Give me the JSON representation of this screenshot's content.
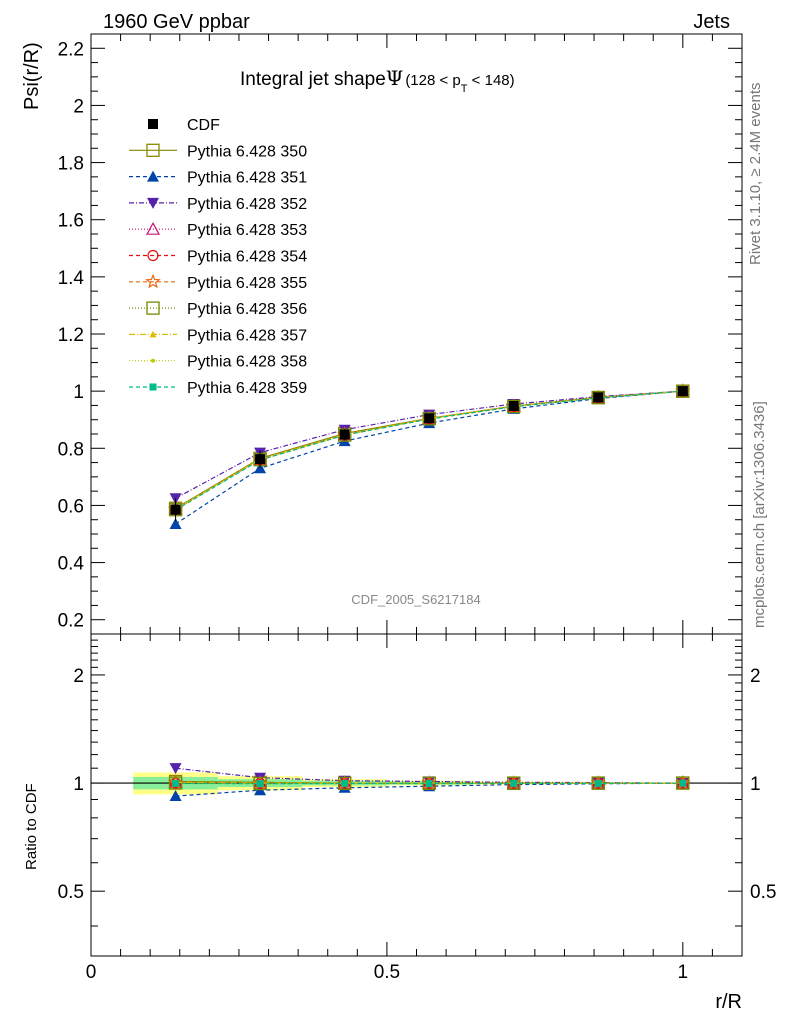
{
  "header": {
    "left": "1960 GeV ppbar",
    "right": "Jets"
  },
  "side_texts": {
    "rivet": "Rivet 3.1.10, ≥ 2.4M events",
    "mcplots": "mcplots.cern.ch [arXiv:1306.3436]"
  },
  "chart_data": [
    {
      "type": "line",
      "title": "Integral jet shape Ψ (128 < pT < 148)",
      "title_parts": {
        "main": "Integral jet shape",
        "symbol": "Ψ",
        "range_pre": "(128 < p",
        "range_sub": "T",
        "range_post": " < 148)"
      },
      "ylabel": "Psi(r/R)",
      "xlabel": "r/R",
      "xlim": [
        0,
        1.1
      ],
      "ylim": [
        0.15,
        2.25
      ],
      "yticks": [
        0.2,
        0.4,
        0.6,
        0.8,
        1,
        1.2,
        1.4,
        1.6,
        1.8,
        2,
        2.2
      ],
      "ytick_labels": [
        "0.2",
        "0.4",
        "0.6",
        "0.8",
        "1",
        "1.2",
        "1.4",
        "1.6",
        "1.8",
        "2",
        "2.2"
      ],
      "watermark": "CDF_2005_S6217184",
      "legend_position": "top-left",
      "x": [
        0.1429,
        0.2857,
        0.4286,
        0.5714,
        0.7143,
        0.8571,
        1.0
      ],
      "data_series": {
        "name": "CDF",
        "values": [
          0.585,
          0.762,
          0.848,
          0.905,
          0.948,
          0.978,
          1.0
        ],
        "errors": [
          0.04,
          0.03,
          0.02,
          0.015,
          0.01,
          0.006,
          0.0
        ],
        "color": "#000000",
        "marker": "filled-square"
      },
      "series": [
        {
          "name": "Pythia 6.428 350",
          "values": [
            0.59,
            0.765,
            0.852,
            0.905,
            0.948,
            0.978,
            1.0
          ],
          "color": "#888800",
          "dash": "",
          "marker": "open-square"
        },
        {
          "name": "Pythia 6.428 351",
          "values": [
            0.535,
            0.73,
            0.825,
            0.888,
            0.938,
            0.974,
            1.0
          ],
          "color": "#0044aa",
          "dash": "4,3",
          "marker": "filled-triangle-up"
        },
        {
          "name": "Pythia 6.428 352",
          "values": [
            0.625,
            0.785,
            0.865,
            0.918,
            0.955,
            0.981,
            1.0
          ],
          "color": "#5522aa",
          "dash": "5,2,1,2",
          "marker": "filled-triangle-down"
        },
        {
          "name": "Pythia 6.428 353",
          "values": [
            0.588,
            0.762,
            0.848,
            0.904,
            0.947,
            0.977,
            1.0
          ],
          "color": "#cc1177",
          "dash": "1,2",
          "marker": "open-triangle-up"
        },
        {
          "name": "Pythia 6.428 354",
          "values": [
            0.586,
            0.76,
            0.847,
            0.903,
            0.946,
            0.977,
            1.0
          ],
          "color": "#dd1111",
          "dash": "4,3",
          "marker": "open-circle"
        },
        {
          "name": "Pythia 6.428 355",
          "values": [
            0.587,
            0.761,
            0.848,
            0.904,
            0.947,
            0.977,
            1.0
          ],
          "color": "#ee6611",
          "dash": "4,3",
          "marker": "open-star"
        },
        {
          "name": "Pythia 6.428 356",
          "values": [
            0.585,
            0.76,
            0.846,
            0.903,
            0.946,
            0.977,
            1.0
          ],
          "color": "#778800",
          "dash": "1,2",
          "marker": "open-square"
        },
        {
          "name": "Pythia 6.428 357",
          "values": [
            0.588,
            0.762,
            0.848,
            0.904,
            0.947,
            0.977,
            1.0
          ],
          "color": "#ddbb00",
          "dash": "6,2,1,2",
          "marker": "small-filled-triangle"
        },
        {
          "name": "Pythia 6.428 358",
          "values": [
            0.587,
            0.761,
            0.847,
            0.904,
            0.947,
            0.977,
            1.0
          ],
          "color": "#bbcc00",
          "dash": "1,2",
          "marker": "small-dot"
        },
        {
          "name": "Pythia 6.428 359",
          "values": [
            0.584,
            0.759,
            0.846,
            0.902,
            0.946,
            0.976,
            1.0
          ],
          "color": "#00bb88",
          "dash": "4,3",
          "marker": "filled-square-small"
        }
      ]
    },
    {
      "type": "line",
      "ylabel": "Ratio to CDF",
      "xlabel": "r/R",
      "xlim": [
        0,
        1.1
      ],
      "ylim": [
        0.33,
        2.6
      ],
      "log_y": true,
      "yticks": [
        0.5,
        1,
        2
      ],
      "ytick_labels": [
        "0.5",
        "1",
        "2"
      ],
      "xticks": [
        0,
        0.5,
        1
      ],
      "xtick_labels": [
        "0",
        "0.5",
        "1"
      ],
      "band_bins": [
        [
          0.0714,
          0.2143
        ],
        [
          0.2143,
          0.3571
        ],
        [
          0.3571,
          0.5
        ],
        [
          0.5,
          0.6429
        ],
        [
          0.6429,
          0.7857
        ],
        [
          0.7857,
          0.9286
        ],
        [
          0.9286,
          1.0714
        ]
      ],
      "band_inner": [
        0.04,
        0.025,
        0.015,
        0.01,
        0.006,
        0.004,
        0.002
      ],
      "band_outer": [
        0.07,
        0.045,
        0.025,
        0.015,
        0.009,
        0.006,
        0.003
      ],
      "band_colors": {
        "inner": "#88ee99",
        "outer": "#ffff88"
      },
      "ratios": [
        {
          "name": "Pythia 6.428 350",
          "values": [
            1.01,
            1.005,
            1.0,
            1.0,
            1.0,
            1.0,
            1.0
          ]
        },
        {
          "name": "Pythia 6.428 351",
          "values": [
            0.92,
            0.955,
            0.97,
            0.98,
            0.99,
            0.995,
            1.0
          ]
        },
        {
          "name": "Pythia 6.428 352",
          "values": [
            1.1,
            1.035,
            1.015,
            1.01,
            1.005,
            1.003,
            1.0
          ]
        },
        {
          "name": "Pythia 6.428 353",
          "values": [
            1.005,
            1.0,
            1.0,
            0.999,
            0.999,
            0.999,
            1.0
          ]
        },
        {
          "name": "Pythia 6.428 354",
          "values": [
            1.0,
            0.998,
            0.999,
            0.998,
            0.998,
            0.999,
            1.0
          ]
        },
        {
          "name": "Pythia 6.428 355",
          "values": [
            1.003,
            0.999,
            1.0,
            0.999,
            0.999,
            0.999,
            1.0
          ]
        },
        {
          "name": "Pythia 6.428 356",
          "values": [
            1.0,
            0.997,
            0.998,
            0.998,
            0.998,
            0.999,
            1.0
          ]
        },
        {
          "name": "Pythia 6.428 357",
          "values": [
            1.005,
            1.0,
            1.0,
            0.999,
            0.999,
            0.999,
            1.0
          ]
        },
        {
          "name": "Pythia 6.428 358",
          "values": [
            1.003,
            0.999,
            0.999,
            0.999,
            0.999,
            0.999,
            1.0
          ]
        },
        {
          "name": "Pythia 6.428 359",
          "values": [
            0.998,
            0.996,
            0.998,
            0.997,
            0.998,
            0.998,
            1.0
          ]
        }
      ]
    }
  ]
}
